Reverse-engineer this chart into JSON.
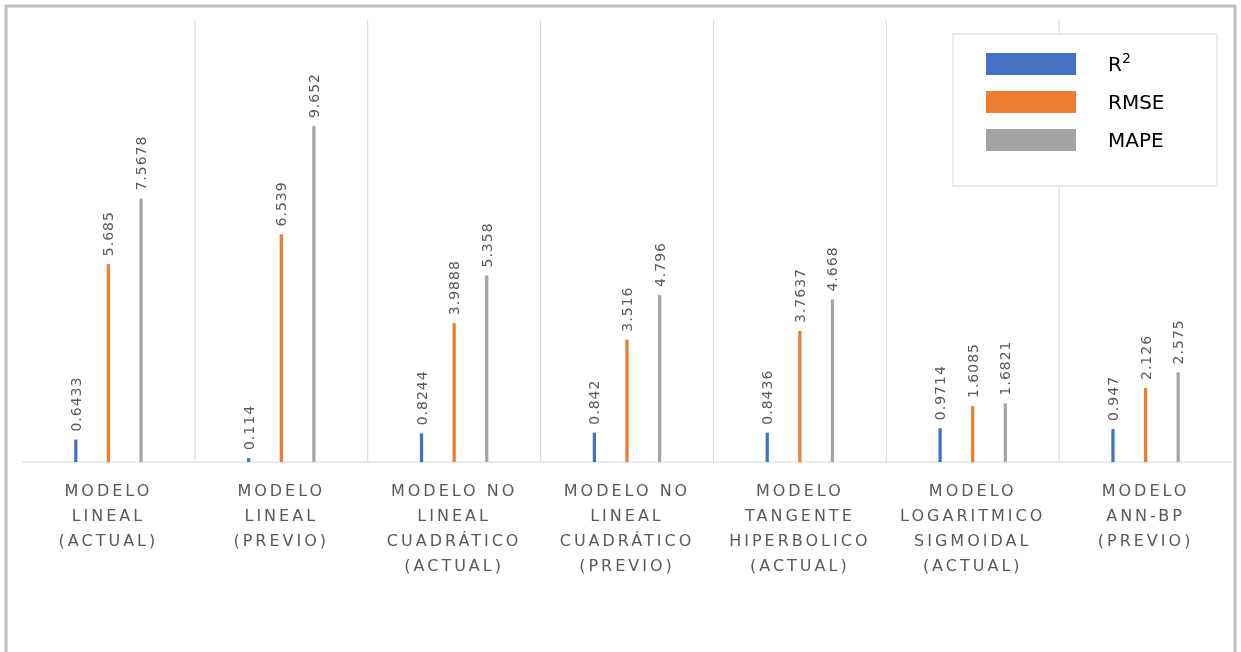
{
  "chart_data": {
    "type": "bar",
    "categories": [
      "MODELO LINEAL (ACTUAL)",
      "MODELO LINEAL (PREVIO)",
      "MODELO NO LINEAL CUADRÁTICO (ACTUAL)",
      "MODELO NO LINEAL CUADRÁTICO (PREVIO)",
      "MODELO TANGENTE HIPERBOLICO (ACTUAL)",
      "MODELO LOGARITMICO SIGMOIDAL (ACTUAL)",
      "MODELO ANN-BP (PREVIO)"
    ],
    "series": [
      {
        "name": "R$^{2}$",
        "color": "#4472c4",
        "values": [
          0.6433,
          0.114,
          0.8244,
          0.842,
          0.8436,
          0.9714,
          0.947
        ]
      },
      {
        "name": "RMSE",
        "color": "#ed7d31",
        "values": [
          5.685,
          6.539,
          3.9888,
          3.516,
          3.7637,
          1.6085,
          2.126
        ]
      },
      {
        "name": "MAPE",
        "color": "#a5a5a5",
        "values": [
          7.5678,
          9.652,
          5.358,
          4.796,
          4.668,
          1.6821,
          2.575
        ]
      }
    ],
    "ylim": [
      0,
      12.7
    ],
    "data_labels": true,
    "grid": "x",
    "legend": "top right"
  }
}
